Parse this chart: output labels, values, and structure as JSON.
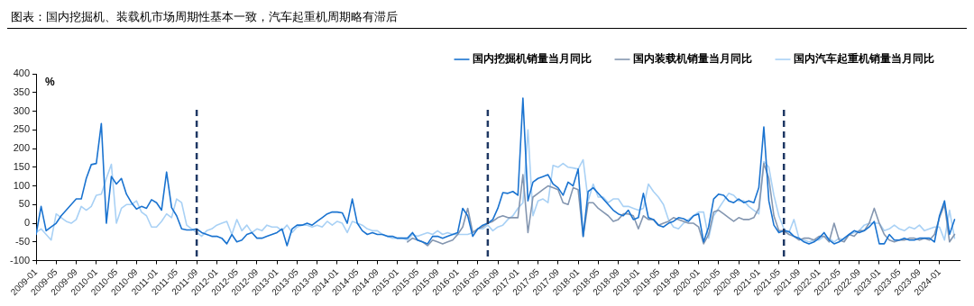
{
  "chart_data": {
    "type": "line",
    "title": "图表：国内挖掘机、装载机市场周期性基本一致，汽车起重机周期略有滞后",
    "ylabel": "%",
    "x": [
      "2009-01",
      "2009-02",
      "2009-03",
      "2009-04",
      "2009-05",
      "2009-06",
      "2009-07",
      "2009-08",
      "2009-09",
      "2009-10",
      "2009-11",
      "2009-12",
      "2010-01",
      "2010-02",
      "2010-03",
      "2010-04",
      "2010-05",
      "2010-06",
      "2010-07",
      "2010-08",
      "2010-09",
      "2010-10",
      "2010-11",
      "2010-12",
      "2011-01",
      "2011-02",
      "2011-03",
      "2011-04",
      "2011-05",
      "2011-06",
      "2011-07",
      "2011-08",
      "2011-09",
      "2011-10",
      "2011-11",
      "2011-12",
      "2012-01",
      "2012-02",
      "2012-03",
      "2012-04",
      "2012-05",
      "2012-06",
      "2012-07",
      "2012-08",
      "2012-09",
      "2012-10",
      "2012-11",
      "2012-12",
      "2013-01",
      "2013-02",
      "2013-03",
      "2013-04",
      "2013-05",
      "2013-06",
      "2013-07",
      "2013-08",
      "2013-09",
      "2013-10",
      "2013-11",
      "2013-12",
      "2014-01",
      "2014-02",
      "2014-03",
      "2014-04",
      "2014-05",
      "2014-06",
      "2014-07",
      "2014-08",
      "2014-09",
      "2014-10",
      "2014-11",
      "2014-12",
      "2015-01",
      "2015-02",
      "2015-03",
      "2015-04",
      "2015-05",
      "2015-06",
      "2015-07",
      "2015-08",
      "2015-09",
      "2015-10",
      "2015-11",
      "2015-12",
      "2016-01",
      "2016-02",
      "2016-03",
      "2016-04",
      "2016-05",
      "2016-06",
      "2016-07",
      "2016-08",
      "2016-09",
      "2016-10",
      "2016-11",
      "2016-12",
      "2017-01",
      "2017-02",
      "2017-03",
      "2017-04",
      "2017-05",
      "2017-06",
      "2017-07",
      "2017-08",
      "2017-09",
      "2017-10",
      "2017-11",
      "2017-12",
      "2018-01",
      "2018-02",
      "2018-03",
      "2018-04",
      "2018-05",
      "2018-06",
      "2018-07",
      "2018-08",
      "2018-09",
      "2018-10",
      "2018-11",
      "2018-12",
      "2019-01",
      "2019-02",
      "2019-03",
      "2019-04",
      "2019-05",
      "2019-06",
      "2019-07",
      "2019-08",
      "2019-09",
      "2019-10",
      "2019-11",
      "2019-12",
      "2020-01",
      "2020-02",
      "2020-03",
      "2020-04",
      "2020-05",
      "2020-06",
      "2020-07",
      "2020-08",
      "2020-09",
      "2020-10",
      "2020-11",
      "2020-12",
      "2021-01",
      "2021-02",
      "2021-03",
      "2021-04",
      "2021-05",
      "2021-06",
      "2021-07",
      "2021-08",
      "2021-09",
      "2021-10",
      "2021-11",
      "2021-12",
      "2022-01",
      "2022-02",
      "2022-03",
      "2022-04",
      "2022-05",
      "2022-06",
      "2022-07",
      "2022-08",
      "2022-09",
      "2022-10",
      "2022-11",
      "2022-12",
      "2023-01",
      "2023-02",
      "2023-03",
      "2023-04",
      "2023-05",
      "2023-06",
      "2023-07",
      "2023-08",
      "2023-09",
      "2023-10",
      "2023-11",
      "2023-12",
      "2024-01",
      "2024-02",
      "2024-03",
      "2024-04"
    ],
    "series": [
      {
        "name": "国内挖掘机销量当月同比",
        "color": "#1a73d0",
        "values": [
          -30,
          45,
          -20,
          -10,
          0,
          20,
          35,
          50,
          65,
          65,
          120,
          157,
          160,
          267,
          0,
          125,
          105,
          120,
          78,
          55,
          38,
          45,
          40,
          63,
          55,
          35,
          137,
          42,
          20,
          -15,
          -18,
          -18,
          -15,
          -25,
          -30,
          -35,
          -35,
          -40,
          -55,
          -30,
          -50,
          -45,
          -30,
          -25,
          -40,
          -40,
          -35,
          -30,
          -25,
          -15,
          -60,
          -15,
          -5,
          -5,
          0,
          -5,
          5,
          15,
          25,
          30,
          30,
          28,
          0,
          65,
          0,
          -20,
          -30,
          -25,
          -30,
          -30,
          -35,
          -35,
          -40,
          -40,
          -40,
          -25,
          -45,
          -50,
          -55,
          -35,
          -35,
          -40,
          -35,
          -30,
          -25,
          40,
          20,
          -35,
          -15,
          -5,
          0,
          10,
          40,
          82,
          80,
          85,
          75,
          335,
          60,
          110,
          120,
          125,
          130,
          105,
          95,
          75,
          110,
          100,
          145,
          -35,
          85,
          95,
          80,
          65,
          50,
          35,
          25,
          20,
          35,
          10,
          15,
          80,
          15,
          10,
          -5,
          -10,
          0,
          5,
          15,
          12,
          5,
          20,
          25,
          -50,
          -10,
          65,
          78,
          75,
          60,
          55,
          65,
          55,
          60,
          55,
          95,
          258,
          60,
          -5,
          -25,
          -20,
          -22,
          -35,
          -40,
          -50,
          -55,
          -50,
          -40,
          -25,
          -45,
          -55,
          -50,
          -40,
          -30,
          -20,
          -25,
          -20,
          -10,
          5,
          -55,
          -55,
          -30,
          -45,
          -45,
          -40,
          -45,
          -45,
          -40,
          -40,
          -40,
          -50,
          20,
          60,
          -30,
          10
        ]
      },
      {
        "name": "国内装载机销量当月同比",
        "color": "#8496b0",
        "values": [
          null,
          null,
          null,
          null,
          null,
          null,
          null,
          null,
          null,
          null,
          null,
          null,
          null,
          null,
          null,
          null,
          null,
          null,
          null,
          null,
          null,
          null,
          null,
          null,
          null,
          null,
          null,
          null,
          null,
          null,
          null,
          null,
          null,
          null,
          null,
          null,
          null,
          null,
          null,
          null,
          null,
          null,
          null,
          null,
          null,
          null,
          null,
          null,
          null,
          null,
          null,
          null,
          null,
          null,
          null,
          null,
          null,
          null,
          null,
          null,
          null,
          null,
          null,
          null,
          null,
          null,
          null,
          null,
          null,
          null,
          null,
          null,
          null,
          null,
          -50,
          -40,
          -45,
          -50,
          -60,
          -45,
          -50,
          -55,
          -50,
          -45,
          -30,
          -10,
          40,
          -25,
          -15,
          -10,
          0,
          5,
          15,
          20,
          15,
          15,
          15,
          130,
          -25,
          70,
          80,
          90,
          100,
          95,
          90,
          55,
          50,
          95,
          90,
          -35,
          55,
          55,
          40,
          30,
          20,
          5,
          10,
          25,
          25,
          20,
          -15,
          20,
          10,
          10,
          -5,
          0,
          5,
          15,
          10,
          5,
          0,
          0,
          -10,
          -55,
          -30,
          30,
          35,
          25,
          15,
          5,
          15,
          10,
          10,
          15,
          40,
          160,
          120,
          20,
          -20,
          -20,
          -30,
          -35,
          -45,
          -40,
          -40,
          -45,
          -35,
          -35,
          -50,
          0,
          -45,
          -50,
          -30,
          -35,
          -20,
          -20,
          0,
          40,
          0,
          -30,
          -45,
          -50,
          -45,
          -45,
          -40,
          -40,
          -45,
          -40,
          -45,
          -30,
          15,
          50,
          -50,
          -30
        ]
      },
      {
        "name": "国内汽车起重机销量当月同比",
        "color": "#a9d1f5",
        "values": [
          -25,
          -15,
          -30,
          -45,
          25,
          15,
          5,
          0,
          10,
          45,
          35,
          45,
          75,
          78,
          120,
          158,
          0,
          40,
          50,
          50,
          60,
          30,
          20,
          -10,
          -10,
          5,
          25,
          15,
          65,
          55,
          -5,
          -15,
          -25,
          -35,
          -20,
          -15,
          -5,
          0,
          5,
          -30,
          10,
          -20,
          -5,
          -25,
          -15,
          -20,
          -5,
          -10,
          -10,
          -20,
          -5,
          -25,
          -10,
          -5,
          -5,
          -10,
          -5,
          -10,
          5,
          -5,
          5,
          0,
          -25,
          5,
          0,
          -5,
          -15,
          -20,
          -20,
          -30,
          -35,
          -40,
          -40,
          -40,
          -45,
          -30,
          -35,
          -30,
          -25,
          -30,
          -20,
          -30,
          -25,
          -30,
          -30,
          -30,
          -30,
          -25,
          -15,
          -15,
          -5,
          -20,
          -10,
          -5,
          10,
          20,
          40,
          55,
          250,
          20,
          60,
          65,
          55,
          155,
          150,
          160,
          150,
          148,
          145,
          170,
          60,
          105,
          70,
          70,
          55,
          65,
          65,
          45,
          45,
          40,
          35,
          40,
          105,
          85,
          70,
          50,
          10,
          -10,
          -15,
          0,
          10,
          20,
          30,
          30,
          -40,
          20,
          40,
          60,
          80,
          75,
          60,
          60,
          45,
          35,
          25,
          165,
          150,
          75,
          20,
          -15,
          -25,
          10,
          -40,
          -45,
          -50,
          -45,
          -45,
          -35,
          -40,
          -50,
          -40,
          -45,
          -30,
          -25,
          -20,
          -5,
          0,
          0,
          0,
          -20,
          -15,
          -5,
          -15,
          -20,
          -10,
          -15,
          -5,
          -20,
          -15,
          -10,
          -10,
          -45,
          35,
          -40
        ]
      }
    ],
    "xlim": [
      "2009-01",
      "2024-05"
    ],
    "xticks": [
      "2009-01",
      "2009-05",
      "2009-09",
      "2010-01",
      "2010-05",
      "2010-09",
      "2011-01",
      "2011-05",
      "2011-09",
      "2012-01",
      "2012-05",
      "2012-09",
      "2013-01",
      "2013-05",
      "2013-09",
      "2014-01",
      "2014-05",
      "2014-09",
      "2015-01",
      "2015-05",
      "2015-09",
      "2016-01",
      "2016-05",
      "2016-09",
      "2017-01",
      "2017-05",
      "2017-09",
      "2018-01",
      "2018-05",
      "2018-09",
      "2019-01",
      "2019-05",
      "2019-09",
      "2020-01",
      "2020-05",
      "2020-09",
      "2021-01",
      "2021-05",
      "2021-09",
      "2022-01",
      "2022-05",
      "2022-09",
      "2023-01",
      "2023-05",
      "2023-09",
      "2024-01"
    ],
    "ylim": [
      -100,
      400
    ],
    "yticks": [
      -100,
      -50,
      0,
      50,
      100,
      150,
      200,
      250,
      300,
      350,
      400
    ],
    "ref_lines": [
      {
        "axis": "x",
        "value": "2011-09",
        "color": "#1f3864",
        "line_style": "dashed"
      },
      {
        "axis": "x",
        "value": "2016-07",
        "color": "#1f3864",
        "line_style": "dashed"
      },
      {
        "axis": "x",
        "value": "2021-06",
        "color": "#1f3864",
        "line_style": "dashed"
      }
    ],
    "grid": false,
    "legend": "top right",
    "marker": "none",
    "line_style": "solid"
  }
}
